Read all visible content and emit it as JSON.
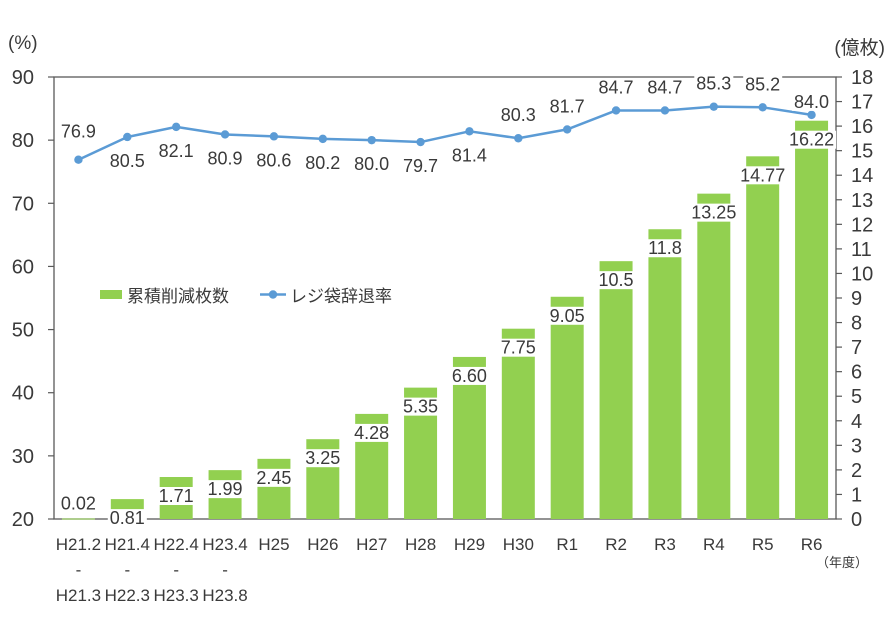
{
  "page": {
    "background": "#ffffff"
  },
  "chart_data": {
    "type": "combo bar+line",
    "title": "",
    "categories": [
      [
        "H21.2",
        "-",
        "H21.3"
      ],
      [
        "H21.4",
        "-",
        "H22.3"
      ],
      [
        "H22.4",
        "-",
        "H23.3"
      ],
      [
        "H23.4",
        "-",
        "H23.8"
      ],
      [
        "H25"
      ],
      [
        "H26"
      ],
      [
        "H27"
      ],
      [
        "H28"
      ],
      [
        "H29"
      ],
      [
        "H30"
      ],
      [
        "R1"
      ],
      [
        "R2"
      ],
      [
        "R3"
      ],
      [
        "R4"
      ],
      [
        "R5"
      ],
      [
        "R6"
      ]
    ],
    "x_axis_unit": "（年度）",
    "left_axis": {
      "unit": "(%)",
      "min": 20,
      "max": 90,
      "step": 10
    },
    "right_axis": {
      "unit": "(億枚)",
      "min": 0,
      "max": 18,
      "step": 1
    },
    "grid": false,
    "legend_position": "inside-middle-left",
    "text_color": "#3a3a3a",
    "axis_color": "#595959",
    "series": [
      {
        "name": "累積削減枚数",
        "type": "bar",
        "axis": "right",
        "color": "#92D050",
        "values": [
          0.02,
          0.81,
          1.71,
          1.99,
          2.45,
          3.25,
          4.28,
          5.35,
          6.6,
          7.75,
          9.05,
          10.5,
          11.8,
          13.25,
          14.77,
          16.22
        ],
        "labels": [
          "0.02",
          "0.81",
          "1.71",
          "1.99",
          "2.45",
          "3.25",
          "4.28",
          "5.35",
          "6.60",
          "7.75",
          "9.05",
          "10.5",
          "11.8",
          "13.25",
          "14.77",
          "16.22"
        ]
      },
      {
        "name": "レジ袋辞退率",
        "type": "line",
        "axis": "left",
        "color": "#5B9BD5",
        "values": [
          76.9,
          80.5,
          82.1,
          80.9,
          80.6,
          80.2,
          80.0,
          79.7,
          81.4,
          80.3,
          81.7,
          84.7,
          84.7,
          85.3,
          85.2,
          84.0
        ],
        "labels": [
          "76.9",
          "80.5",
          "82.1",
          "80.9",
          "80.6",
          "80.2",
          "80.0",
          "79.7",
          "81.4",
          "80.3",
          "81.7",
          "84.7",
          "84.7",
          "85.3",
          "85.2",
          "84.0"
        ],
        "label_positions": [
          "above",
          "below",
          "below",
          "below",
          "below",
          "below",
          "below",
          "below",
          "below",
          "above",
          "above",
          "above",
          "above",
          "above",
          "above",
          "above"
        ]
      }
    ]
  }
}
